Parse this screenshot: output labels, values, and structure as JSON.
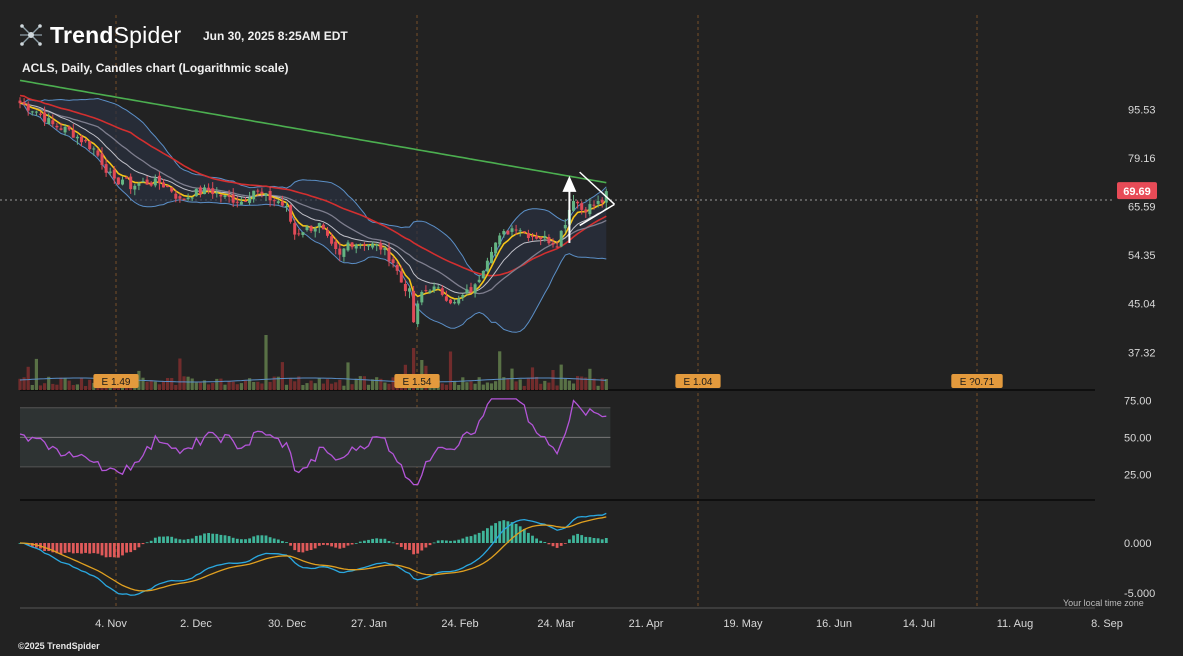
{
  "header": {
    "brand_bold": "Trend",
    "brand_light": "Spider",
    "timestamp": "Jun 30, 2025 8:25AM EDT",
    "subtitle": "ACLS, Daily, Candles chart (Logarithmic scale)",
    "copyright": "©2025 TrendSpider",
    "timezone_note": "Your local time zone"
  },
  "icons": {
    "logo": "trendspider-spider-icon"
  },
  "colors": {
    "background": "#222222",
    "up_candle": "#64b482",
    "down_candle": "#e04a57",
    "sma200": "#4caf50",
    "sma50": "#d32f2f",
    "ema9": "#f5c518",
    "sma20": "#9e9e9e",
    "bollinger": "#5b8fc7",
    "rsi": "#b455d9",
    "macd": "#2aa8e0",
    "signal": "#e0a020",
    "hist_pos": "#3fb59a",
    "hist_neg": "#e05a5a",
    "price_label": "#e84b57",
    "earnings_label": "#e39a3d"
  },
  "chart_data": {
    "type": "candlestick",
    "symbol": "ACLS",
    "interval": "Daily",
    "scale": "log",
    "x_labels": [
      "4. Nov",
      "2. Dec",
      "30. Dec",
      "27. Jan",
      "24. Feb",
      "24. Mar",
      "21. Apr",
      "19. May",
      "16. Jun",
      "14. Jul",
      "11. Aug",
      "8. Sep"
    ],
    "price_ticks": [
      "95.53",
      "79.16",
      "65.59",
      "54.35",
      "45.04",
      "37.32"
    ],
    "last_price": "69.69",
    "price_range": [
      36.5,
      108
    ],
    "close_anchors": [
      {
        "d": 0,
        "c": 98
      },
      {
        "d": 4,
        "c": 95
      },
      {
        "d": 8,
        "c": 90
      },
      {
        "d": 12,
        "c": 88
      },
      {
        "d": 15,
        "c": 85
      },
      {
        "d": 18,
        "c": 82
      },
      {
        "d": 21,
        "c": 76
      },
      {
        "d": 23,
        "c": 72
      },
      {
        "d": 25,
        "c": 73
      },
      {
        "d": 27,
        "c": 71
      },
      {
        "d": 30,
        "c": 72
      },
      {
        "d": 34,
        "c": 72
      },
      {
        "d": 37,
        "c": 70
      },
      {
        "d": 39,
        "c": 67
      },
      {
        "d": 42,
        "c": 69
      },
      {
        "d": 46,
        "c": 70
      },
      {
        "d": 50,
        "c": 68
      },
      {
        "d": 54,
        "c": 67
      },
      {
        "d": 57,
        "c": 70
      },
      {
        "d": 60,
        "c": 68
      },
      {
        "d": 63,
        "c": 67
      },
      {
        "d": 65,
        "c": 65
      },
      {
        "d": 67,
        "c": 59
      },
      {
        "d": 69,
        "c": 60
      },
      {
        "d": 73,
        "c": 61
      },
      {
        "d": 76,
        "c": 56
      },
      {
        "d": 78,
        "c": 54
      },
      {
        "d": 80,
        "c": 57
      },
      {
        "d": 84,
        "c": 57
      },
      {
        "d": 88,
        "c": 56
      },
      {
        "d": 91,
        "c": 53
      },
      {
        "d": 93,
        "c": 49
      },
      {
        "d": 95,
        "c": 47
      },
      {
        "d": 96,
        "c": 42
      },
      {
        "d": 98,
        "c": 47
      },
      {
        "d": 100,
        "c": 48
      },
      {
        "d": 103,
        "c": 47
      },
      {
        "d": 106,
        "c": 45
      },
      {
        "d": 109,
        "c": 47
      },
      {
        "d": 111,
        "c": 48
      },
      {
        "d": 113,
        "c": 52
      },
      {
        "d": 115,
        "c": 56
      },
      {
        "d": 118,
        "c": 59
      },
      {
        "d": 121,
        "c": 61
      },
      {
        "d": 124,
        "c": 59
      },
      {
        "d": 128,
        "c": 58
      },
      {
        "d": 131,
        "c": 57
      },
      {
        "d": 133,
        "c": 62
      },
      {
        "d": 135,
        "c": 68
      },
      {
        "d": 137,
        "c": 65
      },
      {
        "d": 140,
        "c": 66
      },
      {
        "d": 142,
        "c": 67
      },
      {
        "d": 143,
        "c": 69.69
      }
    ],
    "earnings": [
      {
        "day": 13,
        "label": "E 1.49"
      },
      {
        "day": 68,
        "label": "E 1.54"
      },
      {
        "day": 117,
        "label": "E 1.04"
      },
      {
        "day": 163,
        "label": "E ?0.71"
      }
    ],
    "rsi": {
      "ticks": [
        "75.00",
        "50.00",
        "25.00"
      ],
      "range": [
        13,
        80
      ],
      "band": [
        30,
        70
      ]
    },
    "macd": {
      "ticks": [
        "0.000",
        "-5.000"
      ],
      "range": [
        -6.2,
        3.8
      ]
    }
  }
}
